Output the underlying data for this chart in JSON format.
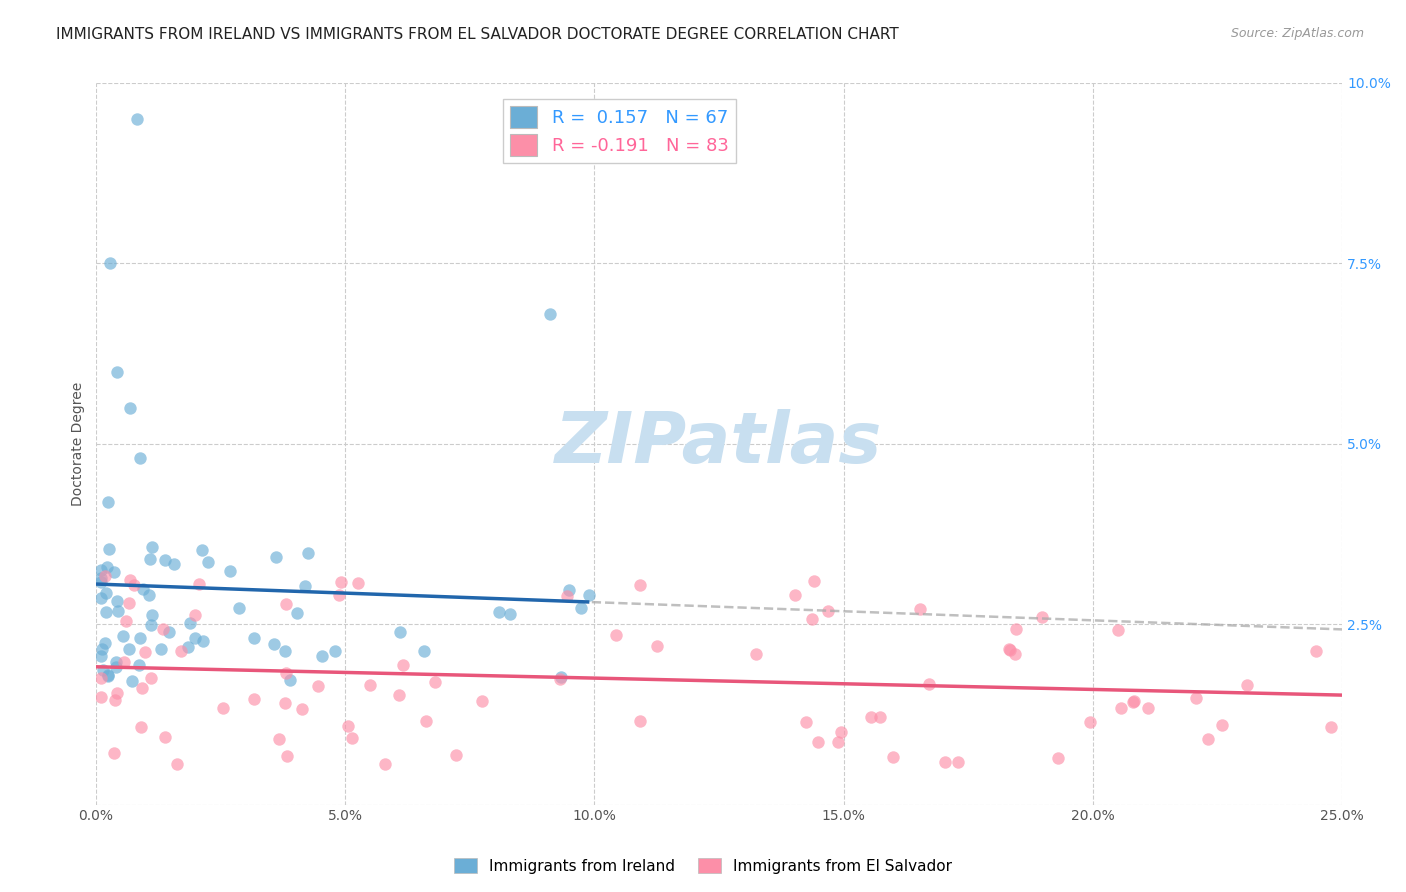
{
  "title": "IMMIGRANTS FROM IRELAND VS IMMIGRANTS FROM EL SALVADOR DOCTORATE DEGREE CORRELATION CHART",
  "source": "Source: ZipAtlas.com",
  "ylabel": "Doctorate Degree",
  "xlim": [
    0,
    0.25
  ],
  "ylim": [
    0,
    0.1
  ],
  "ireland_R": 0.157,
  "ireland_N": 67,
  "elsalvador_R": -0.191,
  "elsalvador_N": 83,
  "ireland_color": "#6baed6",
  "elsalvador_color": "#fc8fa8",
  "ireland_line_color": "#2166ac",
  "elsalvador_line_color": "#e8567a",
  "ireland_size": 80,
  "elsalvador_size": 80,
  "background_color": "#ffffff",
  "grid_color": "#cccccc",
  "title_fontsize": 11,
  "label_fontsize": 10,
  "tick_fontsize": 10,
  "watermark": "ZIPatlas",
  "watermark_color": "#c8dff0",
  "watermark_fontsize": 52
}
